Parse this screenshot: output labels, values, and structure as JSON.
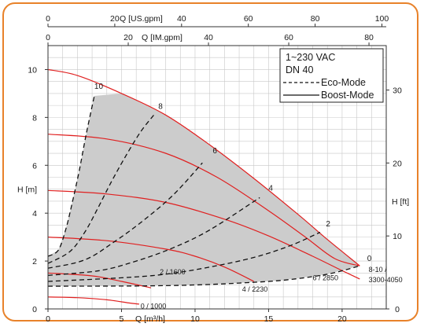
{
  "chart_data": {
    "type": "line",
    "left_axis": {
      "label": "H [m]",
      "range": [
        0,
        11
      ],
      "ticks": [
        0,
        2,
        4,
        6,
        8,
        10
      ]
    },
    "right_axis": {
      "label": "H [ft]",
      "range": [
        0,
        36.09
      ],
      "ticks": [
        0,
        10,
        20,
        30
      ]
    },
    "bottom_axis": {
      "label": "Q [m³/h]",
      "range": [
        0,
        23
      ],
      "ticks": [
        0,
        5,
        10,
        15,
        20
      ]
    },
    "top_axis_usgpm": {
      "label": "Q [US.gpm]",
      "range": [
        0,
        101.3
      ],
      "ticks": [
        0,
        20,
        40,
        60,
        80,
        100
      ]
    },
    "top_axis_imgpm": {
      "label": "Q [IM.gpm]",
      "range": [
        0,
        84.3
      ],
      "ticks": [
        0,
        20,
        40,
        60,
        80
      ]
    },
    "grid": true,
    "legend": {
      "lines": [
        "1~230 VAC",
        "DN 40"
      ],
      "items": [
        {
          "label": "Eco-Mode",
          "style": "dashed"
        },
        {
          "label": "Boost-Mode",
          "style": "solid"
        }
      ]
    },
    "operating_area_color": "#cccccc",
    "boost_color": "#e02020",
    "eco_color": "#111111",
    "boost_curves": [
      {
        "points": [
          [
            0,
            10
          ],
          [
            2,
            9.75
          ],
          [
            5,
            9.0
          ],
          [
            8,
            8.1
          ],
          [
            11,
            6.85
          ],
          [
            14,
            5.45
          ],
          [
            17,
            3.95
          ],
          [
            19,
            2.9
          ],
          [
            21.2,
            1.8
          ]
        ]
      },
      {
        "points": [
          [
            0,
            7.3
          ],
          [
            4,
            7.1
          ],
          [
            8,
            6.5
          ],
          [
            11.5,
            5.5
          ],
          [
            15,
            4.1
          ],
          [
            17.5,
            3.0
          ],
          [
            19.5,
            2.1
          ],
          [
            21.2,
            1.8
          ]
        ]
      },
      {
        "points": [
          [
            0,
            4.95
          ],
          [
            4,
            4.8
          ],
          [
            8,
            4.45
          ],
          [
            12,
            3.75
          ],
          [
            15,
            3.05
          ],
          [
            18,
            2.2
          ],
          [
            20,
            1.6
          ],
          [
            21.2,
            1.25
          ]
        ]
      },
      {
        "points": [
          [
            0,
            3.0
          ],
          [
            4,
            2.85
          ],
          [
            8,
            2.5
          ],
          [
            10,
            2.2
          ],
          [
            12,
            1.75
          ],
          [
            14,
            1.15
          ]
        ]
      },
      {
        "points": [
          [
            0,
            1.5
          ],
          [
            3,
            1.38
          ],
          [
            5,
            1.15
          ],
          [
            6.5,
            0.95
          ],
          [
            7,
            0.88
          ]
        ]
      },
      {
        "points": [
          [
            0,
            0.5
          ],
          [
            2,
            0.47
          ],
          [
            4,
            0.38
          ],
          [
            5.5,
            0.25
          ],
          [
            6.2,
            0.2
          ]
        ]
      }
    ],
    "eco_curves": [
      {
        "label": "10",
        "points": [
          [
            0,
            2.2
          ],
          [
            0.7,
            2.45
          ],
          [
            1.2,
            3.3
          ],
          [
            1.6,
            4.3
          ],
          [
            2.1,
            5.7
          ],
          [
            2.6,
            7.3
          ],
          [
            3.15,
            8.9
          ]
        ]
      },
      {
        "label": "8",
        "points": [
          [
            0,
            1.9
          ],
          [
            1.5,
            2.4
          ],
          [
            2.5,
            3.2
          ],
          [
            3.3,
            4.1
          ],
          [
            4.3,
            5.3
          ],
          [
            5.3,
            6.4
          ],
          [
            6.3,
            7.4
          ],
          [
            7.2,
            8.1
          ]
        ]
      },
      {
        "label": "6",
        "points": [
          [
            0,
            1.7
          ],
          [
            2.5,
            2.05
          ],
          [
            4.5,
            2.8
          ],
          [
            6.5,
            3.7
          ],
          [
            8.5,
            4.75
          ],
          [
            10.5,
            6.1
          ]
        ]
      },
      {
        "label": "4",
        "points": [
          [
            0,
            1.4
          ],
          [
            3.5,
            1.6
          ],
          [
            6,
            2.0
          ],
          [
            8.5,
            2.55
          ],
          [
            11,
            3.3
          ],
          [
            14.4,
            4.65
          ]
        ]
      },
      {
        "label": "2",
        "points": [
          [
            0,
            1.15
          ],
          [
            5,
            1.3
          ],
          [
            8,
            1.45
          ],
          [
            11,
            1.75
          ],
          [
            14,
            2.15
          ],
          [
            16.5,
            2.65
          ],
          [
            18.5,
            3.2
          ]
        ]
      },
      {
        "label": "0",
        "points": [
          [
            0,
            0.95
          ],
          [
            6,
            0.96
          ],
          [
            10,
            1.0
          ],
          [
            13,
            1.08
          ],
          [
            16,
            1.2
          ],
          [
            19,
            1.45
          ],
          [
            21.2,
            1.8
          ]
        ]
      }
    ],
    "curve_labels": [
      {
        "text": "10",
        "at": [
          3.15,
          9.2
        ]
      },
      {
        "text": "8",
        "at": [
          7.5,
          8.35
        ]
      },
      {
        "text": "6",
        "at": [
          11.2,
          6.5
        ]
      },
      {
        "text": "4",
        "at": [
          15.0,
          4.95
        ]
      },
      {
        "text": "2",
        "at": [
          18.9,
          3.45
        ]
      },
      {
        "text": "0",
        "at": [
          21.7,
          2.0
        ]
      },
      {
        "text": "8-10 /",
        "at": [
          21.8,
          1.55
        ]
      },
      {
        "text": "3300-4050",
        "at": [
          21.8,
          1.12
        ]
      },
      {
        "text": "6 / 2850",
        "at": [
          18.0,
          1.2
        ]
      },
      {
        "text": "4 / 2230",
        "at": [
          13.2,
          0.72
        ]
      },
      {
        "text": "2 / 1600",
        "at": [
          7.6,
          1.45
        ]
      },
      {
        "text": "0 / 1000",
        "at": [
          6.3,
          0.02
        ]
      }
    ]
  }
}
